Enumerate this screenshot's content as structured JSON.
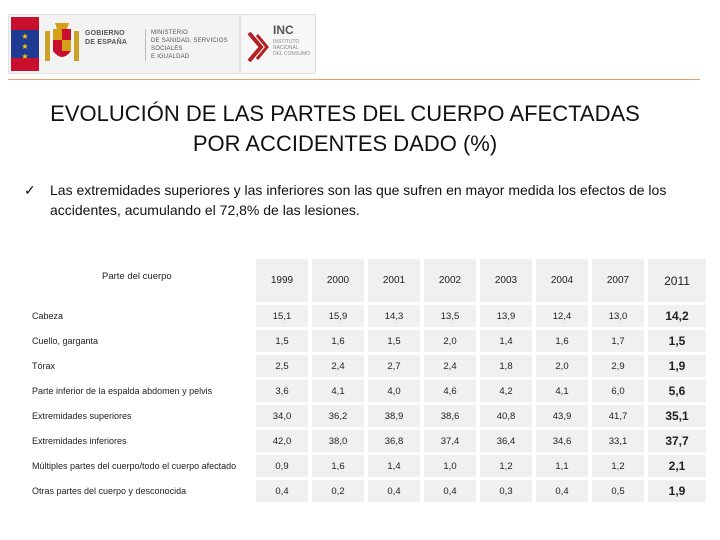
{
  "header": {
    "gov_lines": [
      "GOBIERNO",
      "DE ESPAÑA"
    ],
    "ministry_lines": [
      "MINISTERIO",
      "DE SANIDAD, SERVICIOS SOCIALES",
      "E IGUALDAD"
    ],
    "inc_title": "INC",
    "inc_lines": [
      "INSTITUTO",
      "NACIONAL",
      "DEL CONSUMO"
    ]
  },
  "title": {
    "line1": "EVOLUCIÓN DE LAS PARTES DEL CUERPO AFECTADAS",
    "line2": "POR ACCIDENTES DADO  (%)"
  },
  "bullet": {
    "check": "✓",
    "text": "Las extremidades superiores y las inferiores son las que sufren en mayor medida los efectos de los accidentes, acumulando el 72,8% de las lesiones."
  },
  "table": {
    "header_label": "Parte del cuerpo",
    "years": [
      "1999",
      "2000",
      "2001",
      "2002",
      "2003",
      "2004",
      "2007",
      "2011"
    ],
    "rows": [
      {
        "label": "Cabeza",
        "values": [
          "15,1",
          "15,9",
          "14,3",
          "13,5",
          "13,9",
          "12,4",
          "13,0",
          "14,2"
        ]
      },
      {
        "label": "Cuello, garganta",
        "values": [
          "1,5",
          "1,6",
          "1,5",
          "2,0",
          "1,4",
          "1,6",
          "1,7",
          "1,5"
        ]
      },
      {
        "label": "Tórax",
        "values": [
          "2,5",
          "2,4",
          "2,7",
          "2,4",
          "1,8",
          "2,0",
          "2,9",
          "1,9"
        ]
      },
      {
        "label": "Parte inferior de la espalda abdomen y pelvis",
        "values": [
          "3,6",
          "4,1",
          "4,0",
          "4,6",
          "4,2",
          "4,1",
          "6,0",
          "5,6"
        ]
      },
      {
        "label": "Extremidades superiores",
        "values": [
          "34,0",
          "36,2",
          "38,9",
          "38,6",
          "40,8",
          "43,9",
          "41,7",
          "35,1"
        ]
      },
      {
        "label": "Extremidades inferiores",
        "values": [
          "42,0",
          "38,0",
          "36,8",
          "37,4",
          "36,4",
          "34,6",
          "33,1",
          "37,7"
        ]
      },
      {
        "label": "Múltiples partes del cuerpo/todo el cuerpo afectado",
        "values": [
          "0,9",
          "1,6",
          "1,4",
          "1,0",
          "1,2",
          "1,1",
          "1,2",
          "2,1"
        ]
      },
      {
        "label": "Otras partes del cuerpo y desconocida",
        "values": [
          "0,4",
          "0,2",
          "0,4",
          "0,4",
          "0,3",
          "0,4",
          "0,5",
          "1,9"
        ]
      }
    ]
  }
}
